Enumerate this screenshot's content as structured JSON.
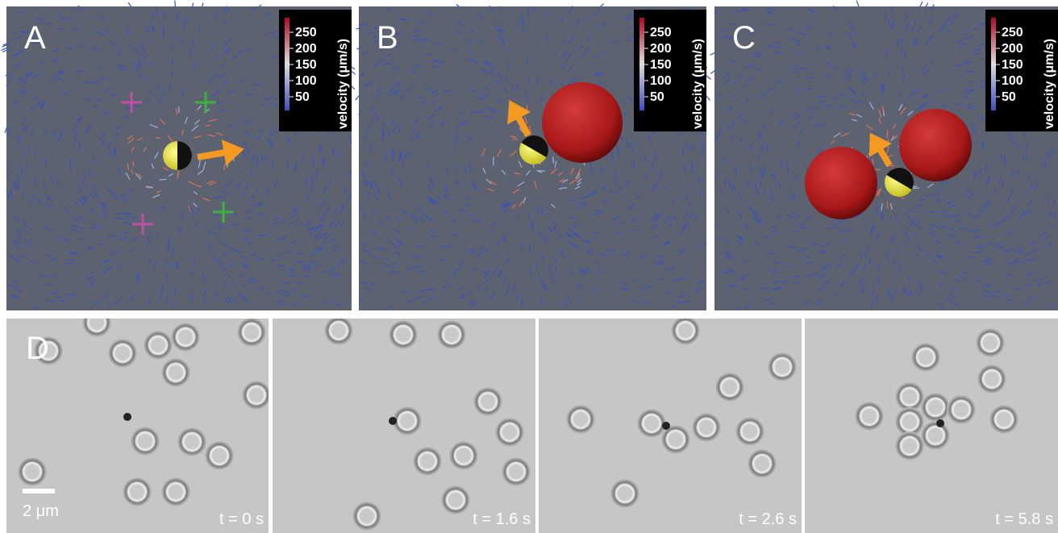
{
  "panels": [
    {
      "letter": "A",
      "colorbar": {
        "ticks": [
          "250",
          "200",
          "150",
          "100",
          "50"
        ],
        "label": "velocity (μm/s)"
      }
    },
    {
      "letter": "B",
      "colorbar": {
        "ticks": [
          "250",
          "200",
          "150",
          "100",
          "50"
        ],
        "label": "velocity (μm/s)"
      }
    },
    {
      "letter": "C",
      "colorbar": {
        "ticks": [
          "250",
          "200",
          "150",
          "100",
          "50"
        ],
        "label": "velocity (μm/s)"
      }
    }
  ],
  "panel_d": {
    "letter": "D",
    "scale_bar": "2 μm",
    "frames": [
      "t = 0 s",
      "t = 1.6 s",
      "t = 2.6 s",
      "t = 5.8 s"
    ]
  }
}
